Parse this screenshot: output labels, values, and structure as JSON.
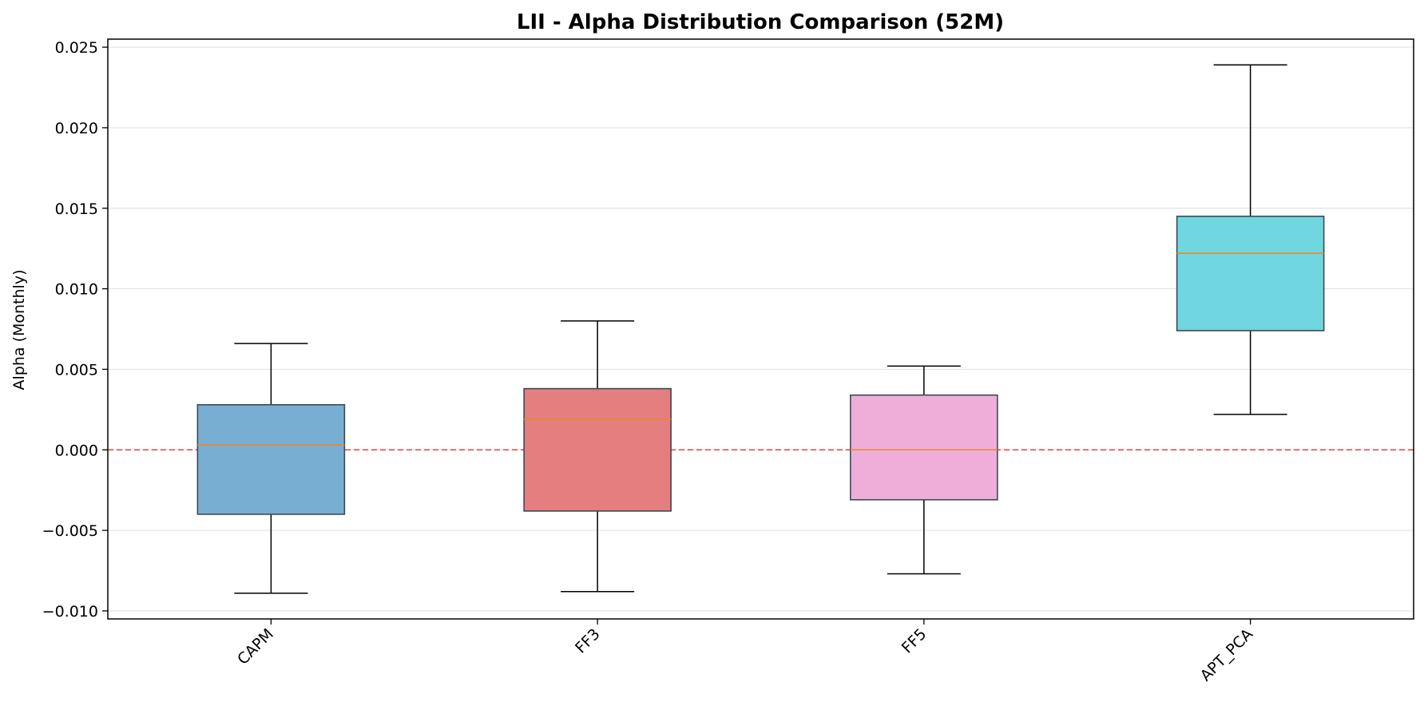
{
  "chart_data": {
    "type": "box",
    "title": "LII - Alpha Distribution Comparison (52M)",
    "xlabel": "",
    "ylabel": "Alpha (Monthly)",
    "ylim": [
      -0.0105,
      0.0255
    ],
    "yticks": [
      "−0.010",
      "−0.005",
      "0.000",
      "0.005",
      "0.010",
      "0.015",
      "0.020",
      "0.025"
    ],
    "ytick_values": [
      -0.01,
      -0.005,
      0.0,
      0.005,
      0.01,
      0.015,
      0.02,
      0.025
    ],
    "grid": "horizontal",
    "reference_line": {
      "y": 0.0,
      "style": "dashed",
      "color": "#e8413c"
    },
    "median_color": "#e8892b",
    "categories": [
      "CAPM",
      "FF3",
      "FF5",
      "APT_PCA"
    ],
    "series": [
      {
        "category": "CAPM",
        "whisker_low": -0.0089,
        "q1": -0.004,
        "median": 0.0003,
        "q3": 0.0028,
        "whisker_high": 0.0066,
        "color": "#79aed3"
      },
      {
        "category": "FF3",
        "whisker_low": -0.0088,
        "q1": -0.0038,
        "median": 0.0019,
        "q3": 0.0038,
        "whisker_high": 0.008,
        "color": "#e57e7e"
      },
      {
        "category": "FF5",
        "whisker_low": -0.0077,
        "q1": -0.0031,
        "median": 0.0,
        "q3": 0.0034,
        "whisker_high": 0.0052,
        "color": "#efaed9"
      },
      {
        "category": "APT_PCA",
        "whisker_low": 0.0022,
        "q1": 0.0074,
        "median": 0.0122,
        "q3": 0.0145,
        "whisker_high": 0.0239,
        "color": "#70d6e0"
      }
    ]
  }
}
